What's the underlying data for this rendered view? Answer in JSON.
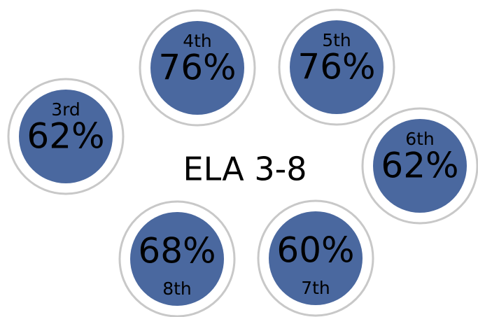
{
  "title": "ELA 3-8",
  "nodes": [
    {
      "label": "4th",
      "value": "76%"
    },
    {
      "label": "5th",
      "value": "76%"
    },
    {
      "label": "3rd",
      "value": "62%"
    },
    {
      "label": "6th",
      "value": "62%"
    },
    {
      "label": "8th",
      "value": "68%"
    },
    {
      "label": "7th",
      "value": "60%"
    }
  ]
}
